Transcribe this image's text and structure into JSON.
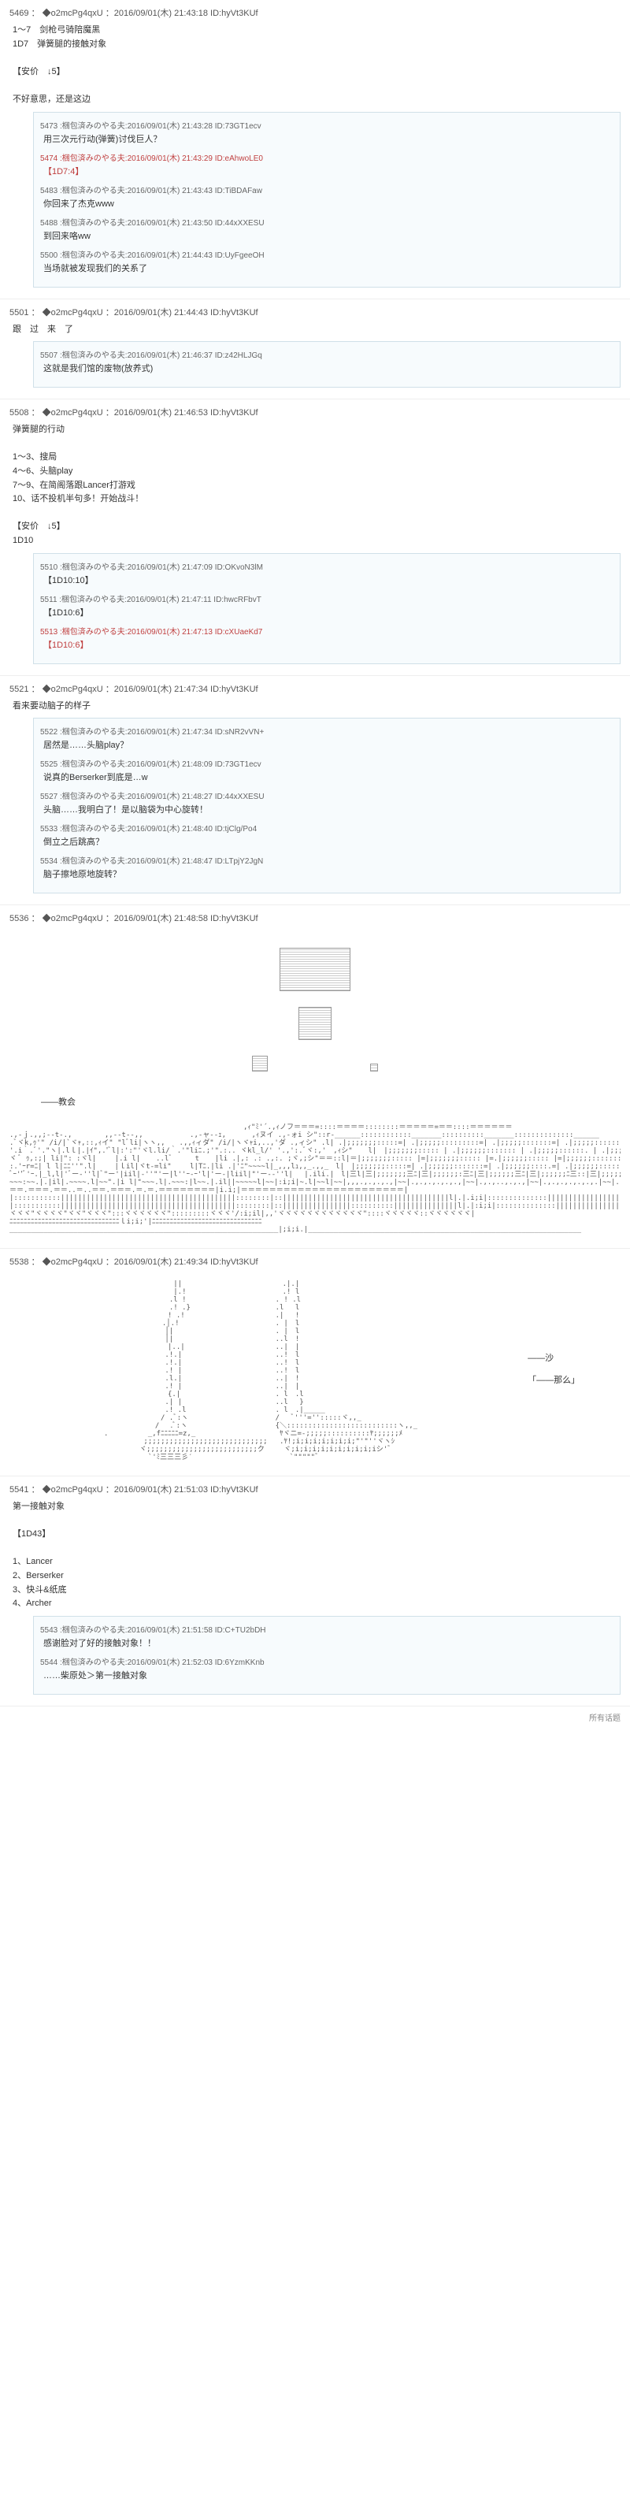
{
  "posts": [
    {
      "id": "5469",
      "trip": "◆o2mcPg4qxU",
      "date": "2016/09/01(木) 21:43:18",
      "uid": "ID:hyVt3KUf",
      "body": "1～7　剑枪弓骑陪魔黑\n1D7　弹簧腿的接触对象\n\n【安价　↓5】\n\n不好意思，还是这边"
    },
    {
      "id": "5501",
      "trip": "◆o2mcPg4qxU",
      "date": "2016/09/01(木) 21:44:43",
      "uid": "ID:hyVt3KUf",
      "body": "跟　过　来　了"
    },
    {
      "id": "5508",
      "trip": "◆o2mcPg4qxU",
      "date": "2016/09/01(木) 21:46:53",
      "uid": "ID:hyVt3KUf",
      "body": "弹簧腿的行动\n\n1～3、搜局\n4～6、头脑play\n7～9、在简阁落跟Lancer打游戏\n10、话不投机半句多！开始战斗！\n\n【安价　↓5】\n1D10"
    },
    {
      "id": "5521",
      "trip": "◆o2mcPg4qxU",
      "date": "2016/09/01(木) 21:47:34",
      "uid": "ID:hyVt3KUf",
      "body": "看来要动脑子的样子"
    },
    {
      "id": "5536",
      "trip": "◆o2mcPg4qxU",
      "date": "2016/09/01(木) 21:48:58",
      "uid": "ID:hyVt3KUf",
      "body": ""
    },
    {
      "id": "5538",
      "trip": "◆o2mcPg4qxU",
      "date": "2016/09/01(木) 21:49:34",
      "uid": "ID:hyVt3KUf",
      "body": ""
    },
    {
      "id": "5541",
      "trip": "◆o2mcPg4qxU",
      "date": "2016/09/01(木) 21:51:03",
      "uid": "ID:hyVt3KUf",
      "body": "第一接触对象\n\n【1D43】\n\n1、Lancer\n2、Berserker\n3、快斗&纸底\n4、Archer"
    }
  ],
  "replies_1": [
    {
      "n": "5473",
      "name": "梱包済みのやる夫",
      "date": "2016/09/01(木) 21:43:28",
      "uid": "ID:73GT1ecv",
      "body": "用三次元行动(弹簧)讨伐巨人？"
    },
    {
      "n": "5474",
      "name": "梱包済みのやる夫",
      "date": "2016/09/01(木) 21:43:29",
      "uid": "ID:eAhwoLE0",
      "body": "【1D7:4】",
      "link": true
    },
    {
      "n": "5483",
      "name": "梱包済みのやる夫",
      "date": "2016/09/01(木) 21:43:43",
      "uid": "ID:TiBDAFaw",
      "body": "你回来了杰克www"
    },
    {
      "n": "5488",
      "name": "梱包済みのやる夫",
      "date": "2016/09/01(木) 21:43:50",
      "uid": "ID:44xXXESU",
      "body": "到回来咯ww"
    },
    {
      "n": "5500",
      "name": "梱包済みのやる夫",
      "date": "2016/09/01(木) 21:44:43",
      "uid": "ID:UyFgeeOH",
      "body": "当场就被发现我们的关系了"
    }
  ],
  "replies_2": [
    {
      "n": "5507",
      "name": "梱包済みのやる夫",
      "date": "2016/09/01(木) 21:46:37",
      "uid": "ID:z42HLJGq",
      "body": "这就是我们馆的废物(放养式)"
    }
  ],
  "replies_3": [
    {
      "n": "5510",
      "name": "梱包済みのやる夫",
      "date": "2016/09/01(木) 21:47:09",
      "uid": "ID:OKvoN3lM",
      "body": "【1D10:10】"
    },
    {
      "n": "5511",
      "name": "梱包済みのやる夫",
      "date": "2016/09/01(木) 21:47:11",
      "uid": "ID:hwcRFbvT",
      "body": "【1D10:6】"
    },
    {
      "n": "5513",
      "name": "梱包済みのやる夫",
      "date": "2016/09/01(木) 21:47:13",
      "uid": "ID:cXUaeKd7",
      "body": "【1D10:6】",
      "link": true
    }
  ],
  "replies_4": [
    {
      "n": "5522",
      "name": "梱包済みのやる夫",
      "date": "2016/09/01(木) 21:47:34",
      "uid": "ID:sNR2vVN+",
      "body": "居然是……头脑play？"
    },
    {
      "n": "5525",
      "name": "梱包済みのやる夫",
      "date": "2016/09/01(木) 21:48:09",
      "uid": "ID:73GT1ecv",
      "body": "说真的Berserker到底是…w"
    },
    {
      "n": "5527",
      "name": "梱包済みのやる夫",
      "date": "2016/09/01(木) 21:48:27",
      "uid": "ID:44xXXESU",
      "body": "头脑……我明白了！是以脑袋为中心旋转！"
    },
    {
      "n": "5533",
      "name": "梱包済みのやる夫",
      "date": "2016/09/01(木) 21:48:40",
      "uid": "ID:tjClg/Po4",
      "body": "倒立之后跳高？"
    },
    {
      "n": "5534",
      "name": "梱包済みのやる夫",
      "date": "2016/09/01(木) 21:48:47",
      "uid": "ID:LTpjY2JgN",
      "body": "脑子擦地原地旋转？"
    }
  ],
  "replies_5": [
    {
      "n": "5543",
      "name": "梱包済みのやる夫",
      "date": "2016/09/01(木) 21:51:58",
      "uid": "ID:C+TU2bDH",
      "body": "感谢脸对了好的接触对象！！"
    },
    {
      "n": "5544",
      "name": "梱包済みのやる夫",
      "date": "2016/09/01(木) 21:52:03",
      "uid": "ID:6YzmKKnb",
      "body": "……柴原处＞第一接触对象"
    }
  ],
  "section_label": "——教会",
  "aa_label_right": "――沙\n\n「――那么」",
  "footer": "所有话题"
}
